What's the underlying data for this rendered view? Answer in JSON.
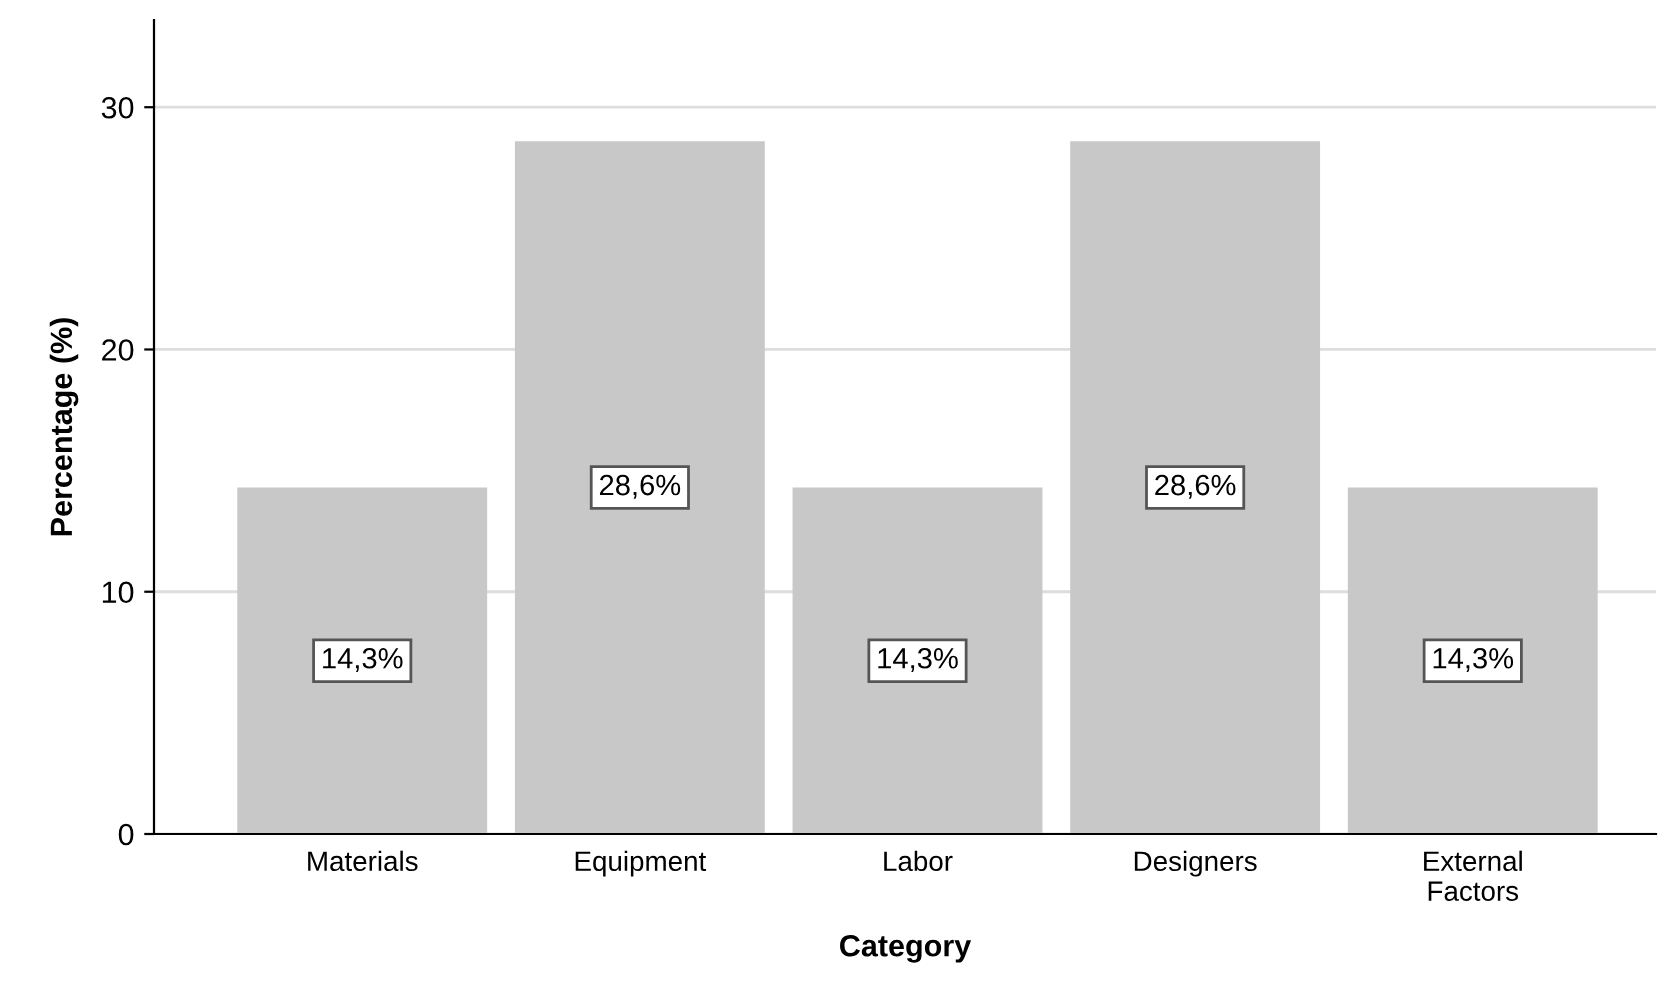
{
  "chart_data": {
    "type": "bar",
    "xlabel": "Category",
    "ylabel": "Percentage (%)",
    "categories": [
      "Materials",
      "Equipment",
      "Labor",
      "Designers",
      "External Factors"
    ],
    "values": [
      14.3,
      28.6,
      14.3,
      28.6,
      14.3
    ],
    "value_labels": [
      "14,3%",
      "28,6%",
      "14,3%",
      "28,6%",
      "14,3%"
    ],
    "color": "#c8c8c8",
    "ylim": [
      0,
      33.6
    ],
    "yticks": [
      0,
      10,
      20,
      30
    ],
    "grid": "y",
    "legend": false
  }
}
